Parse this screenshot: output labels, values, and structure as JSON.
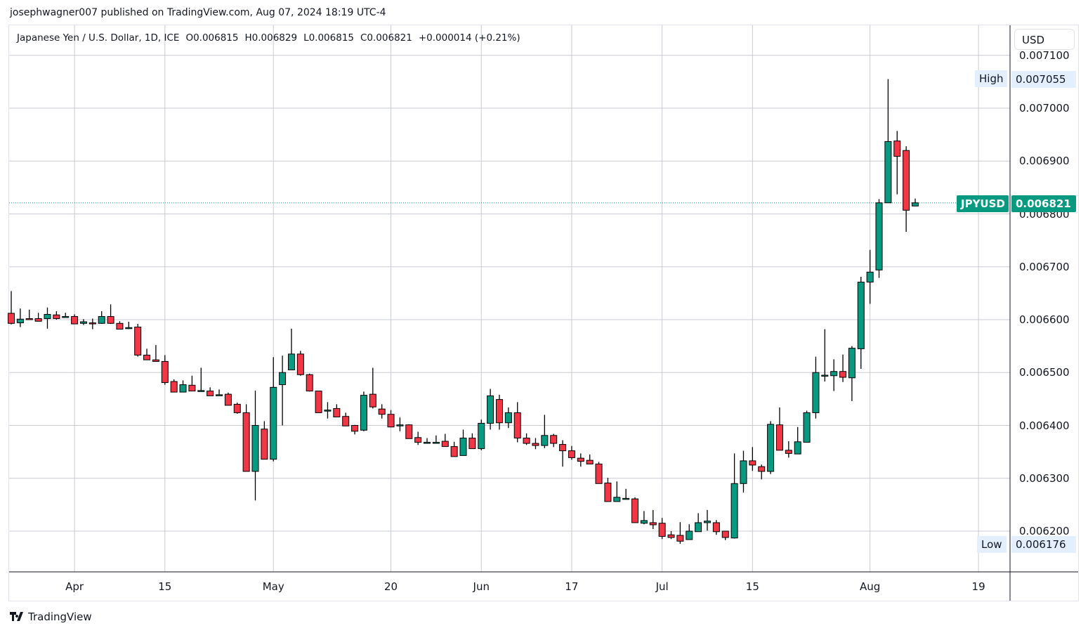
{
  "publish_line": "josephwagner007 published on TradingView.com, Aug 07, 2024 18:19 UTC-4",
  "legend": {
    "symbol": "Japanese Yen / U.S. Dollar, 1D, ICE",
    "open": "O0.006815",
    "high": "H0.006829",
    "low": "L0.006815",
    "close": "C0.006821",
    "change": "+0.000014 (+0.21%)"
  },
  "currency_button": "USD",
  "high_marker": {
    "label": "High",
    "value": "0.007055"
  },
  "low_marker": {
    "label": "Low",
    "value": "0.006176"
  },
  "last_price": {
    "symbol": "JPYUSD",
    "value": "0.006821"
  },
  "brand": "TradingView",
  "colors": {
    "up": "#089981",
    "down": "#F23645",
    "grid": "#b2b5be"
  },
  "chart_data": {
    "type": "candlestick",
    "title": "Japanese Yen / U.S. Dollar, 1D, ICE",
    "y_ticks": [
      "0.007100",
      "0.007000",
      "0.006900",
      "0.006800",
      "0.006700",
      "0.006600",
      "0.006500",
      "0.006400",
      "0.006300",
      "0.006200"
    ],
    "x_ticks": [
      {
        "label": "Apr",
        "bar": 7
      },
      {
        "label": "15",
        "bar": 17
      },
      {
        "label": "May",
        "bar": 29
      },
      {
        "label": "20",
        "bar": 42
      },
      {
        "label": "Jun",
        "bar": 52
      },
      {
        "label": "17",
        "bar": 62
      },
      {
        "label": "Jul",
        "bar": 72
      },
      {
        "label": "15",
        "bar": 82
      },
      {
        "label": "Aug",
        "bar": 95
      },
      {
        "label": "19",
        "bar": 107
      }
    ],
    "ylim": [
      0.00611,
      0.00716
    ],
    "ohlc_fields": [
      "open",
      "high",
      "low",
      "close"
    ],
    "ohlc": [
      [
        0.006612,
        0.006654,
        0.006591,
        0.006593
      ],
      [
        0.006594,
        0.006621,
        0.006586,
        0.006601
      ],
      [
        0.006602,
        0.006619,
        0.0066,
        0.006601
      ],
      [
        0.006602,
        0.006613,
        0.006597,
        0.006597
      ],
      [
        0.006602,
        0.006623,
        0.006583,
        0.00661
      ],
      [
        0.006609,
        0.006616,
        0.0066,
        0.006602
      ],
      [
        0.006604,
        0.006613,
        0.006604,
        0.006606
      ],
      [
        0.006606,
        0.00661,
        0.006592,
        0.006592
      ],
      [
        0.006593,
        0.006601,
        0.00659,
        0.006596
      ],
      [
        0.006594,
        0.006602,
        0.006582,
        0.006592
      ],
      [
        0.006593,
        0.006616,
        0.006592,
        0.006606
      ],
      [
        0.006606,
        0.006629,
        0.006592,
        0.006593
      ],
      [
        0.006593,
        0.006597,
        0.006582,
        0.006582
      ],
      [
        0.006585,
        0.006596,
        0.006582,
        0.006585
      ],
      [
        0.006586,
        0.006592,
        0.00653,
        0.006533
      ],
      [
        0.006533,
        0.006545,
        0.006524,
        0.006524
      ],
      [
        0.006524,
        0.006552,
        0.006521,
        0.006521
      ],
      [
        0.006521,
        0.006533,
        0.006477,
        0.006481
      ],
      [
        0.006483,
        0.006487,
        0.006463,
        0.006463
      ],
      [
        0.006463,
        0.006485,
        0.006463,
        0.006477
      ],
      [
        0.006476,
        0.006494,
        0.006465,
        0.006465
      ],
      [
        0.006466,
        0.006509,
        0.006465,
        0.006466
      ],
      [
        0.006465,
        0.006472,
        0.006456,
        0.006456
      ],
      [
        0.006458,
        0.006468,
        0.006457,
        0.006458
      ],
      [
        0.006459,
        0.006462,
        0.006438,
        0.006438
      ],
      [
        0.00644,
        0.006443,
        0.006422,
        0.006424
      ],
      [
        0.006424,
        0.00644,
        0.006313,
        0.006313
      ],
      [
        0.006313,
        0.006466,
        0.006258,
        0.0064
      ],
      [
        0.006393,
        0.006408,
        0.006336,
        0.006336
      ],
      [
        0.006336,
        0.006529,
        0.006332,
        0.006472
      ],
      [
        0.006477,
        0.006532,
        0.0064,
        0.0065
      ],
      [
        0.006505,
        0.006583,
        0.006505,
        0.006535
      ],
      [
        0.006535,
        0.006541,
        0.006494,
        0.006496
      ],
      [
        0.006496,
        0.006498,
        0.006464,
        0.006465
      ],
      [
        0.006465,
        0.006465,
        0.006424,
        0.006424
      ],
      [
        0.006429,
        0.006444,
        0.006413,
        0.006429
      ],
      [
        0.006432,
        0.00644,
        0.006416,
        0.006416
      ],
      [
        0.006417,
        0.006424,
        0.006399,
        0.006399
      ],
      [
        0.0064,
        0.006401,
        0.006383,
        0.006389
      ],
      [
        0.006391,
        0.006464,
        0.006389,
        0.006457
      ],
      [
        0.006459,
        0.006509,
        0.006432,
        0.006435
      ],
      [
        0.006431,
        0.00644,
        0.006413,
        0.006421
      ],
      [
        0.006421,
        0.006429,
        0.006397,
        0.006397
      ],
      [
        0.006401,
        0.006415,
        0.006389,
        0.006401
      ],
      [
        0.006401,
        0.006402,
        0.006375,
        0.006375
      ],
      [
        0.006377,
        0.006388,
        0.006363,
        0.006368
      ],
      [
        0.006368,
        0.006376,
        0.006366,
        0.006368
      ],
      [
        0.006368,
        0.006381,
        0.006368,
        0.006368
      ],
      [
        0.00637,
        0.006384,
        0.00636,
        0.00636
      ],
      [
        0.00636,
        0.006369,
        0.006341,
        0.006341
      ],
      [
        0.006343,
        0.006392,
        0.006343,
        0.006376
      ],
      [
        0.006376,
        0.006385,
        0.006356,
        0.006356
      ],
      [
        0.006356,
        0.006411,
        0.006353,
        0.006404
      ],
      [
        0.006404,
        0.006469,
        0.006392,
        0.006456
      ],
      [
        0.006449,
        0.006458,
        0.006392,
        0.006405
      ],
      [
        0.006405,
        0.006434,
        0.006395,
        0.006424
      ],
      [
        0.006424,
        0.006444,
        0.006368,
        0.006376
      ],
      [
        0.006376,
        0.006385,
        0.006363,
        0.006366
      ],
      [
        0.006366,
        0.006376,
        0.006355,
        0.006362
      ],
      [
        0.006362,
        0.00642,
        0.006357,
        0.006381
      ],
      [
        0.006381,
        0.006384,
        0.006359,
        0.006366
      ],
      [
        0.006364,
        0.006372,
        0.006322,
        0.006352
      ],
      [
        0.006352,
        0.006361,
        0.006335,
        0.006339
      ],
      [
        0.006338,
        0.006347,
        0.006322,
        0.006332
      ],
      [
        0.006334,
        0.006345,
        0.006327,
        0.006327
      ],
      [
        0.006327,
        0.006331,
        0.00629,
        0.00629
      ],
      [
        0.006291,
        0.006301,
        0.006256,
        0.006256
      ],
      [
        0.006256,
        0.006294,
        0.006256,
        0.006264
      ],
      [
        0.00626,
        0.00628,
        0.00626,
        0.006262
      ],
      [
        0.006261,
        0.006264,
        0.006216,
        0.006216
      ],
      [
        0.006215,
        0.006238,
        0.006213,
        0.00622
      ],
      [
        0.006216,
        0.00624,
        0.006204,
        0.006212
      ],
      [
        0.006215,
        0.006225,
        0.006185,
        0.00619
      ],
      [
        0.006193,
        0.0062,
        0.006185,
        0.006188
      ],
      [
        0.006192,
        0.006217,
        0.006176,
        0.006181
      ],
      [
        0.006184,
        0.006213,
        0.006184,
        0.0062
      ],
      [
        0.006199,
        0.006234,
        0.006199,
        0.006216
      ],
      [
        0.006216,
        0.00624,
        0.006201,
        0.006219
      ],
      [
        0.006216,
        0.006221,
        0.006193,
        0.006199
      ],
      [
        0.0062,
        0.0062,
        0.006183,
        0.006188
      ],
      [
        0.006187,
        0.006347,
        0.006186,
        0.00629
      ],
      [
        0.00629,
        0.006352,
        0.006273,
        0.006333
      ],
      [
        0.006333,
        0.006359,
        0.006314,
        0.006325
      ],
      [
        0.006322,
        0.006326,
        0.006298,
        0.006313
      ],
      [
        0.006313,
        0.006408,
        0.006308,
        0.006402
      ],
      [
        0.006401,
        0.006434,
        0.006353,
        0.006353
      ],
      [
        0.006353,
        0.00637,
        0.006339,
        0.006347
      ],
      [
        0.006346,
        0.006397,
        0.006346,
        0.006369
      ],
      [
        0.006368,
        0.006428,
        0.006368,
        0.006424
      ],
      [
        0.006424,
        0.00653,
        0.006413,
        0.0065
      ],
      [
        0.006495,
        0.006582,
        0.006483,
        0.006495
      ],
      [
        0.006494,
        0.006525,
        0.006465,
        0.006502
      ],
      [
        0.006502,
        0.006534,
        0.006482,
        0.006491
      ],
      [
        0.00649,
        0.00655,
        0.006446,
        0.006546
      ],
      [
        0.006545,
        0.006681,
        0.006507,
        0.006671
      ],
      [
        0.006671,
        0.006732,
        0.00663,
        0.00669
      ],
      [
        0.006694,
        0.006828,
        0.006679,
        0.006821
      ],
      [
        0.006821,
        0.007055,
        0.006821,
        0.006937
      ],
      [
        0.006938,
        0.006957,
        0.006837,
        0.006909
      ],
      [
        0.00692,
        0.006928,
        0.006766,
        0.006807
      ],
      [
        0.006815,
        0.006829,
        0.006815,
        0.006821
      ]
    ]
  }
}
